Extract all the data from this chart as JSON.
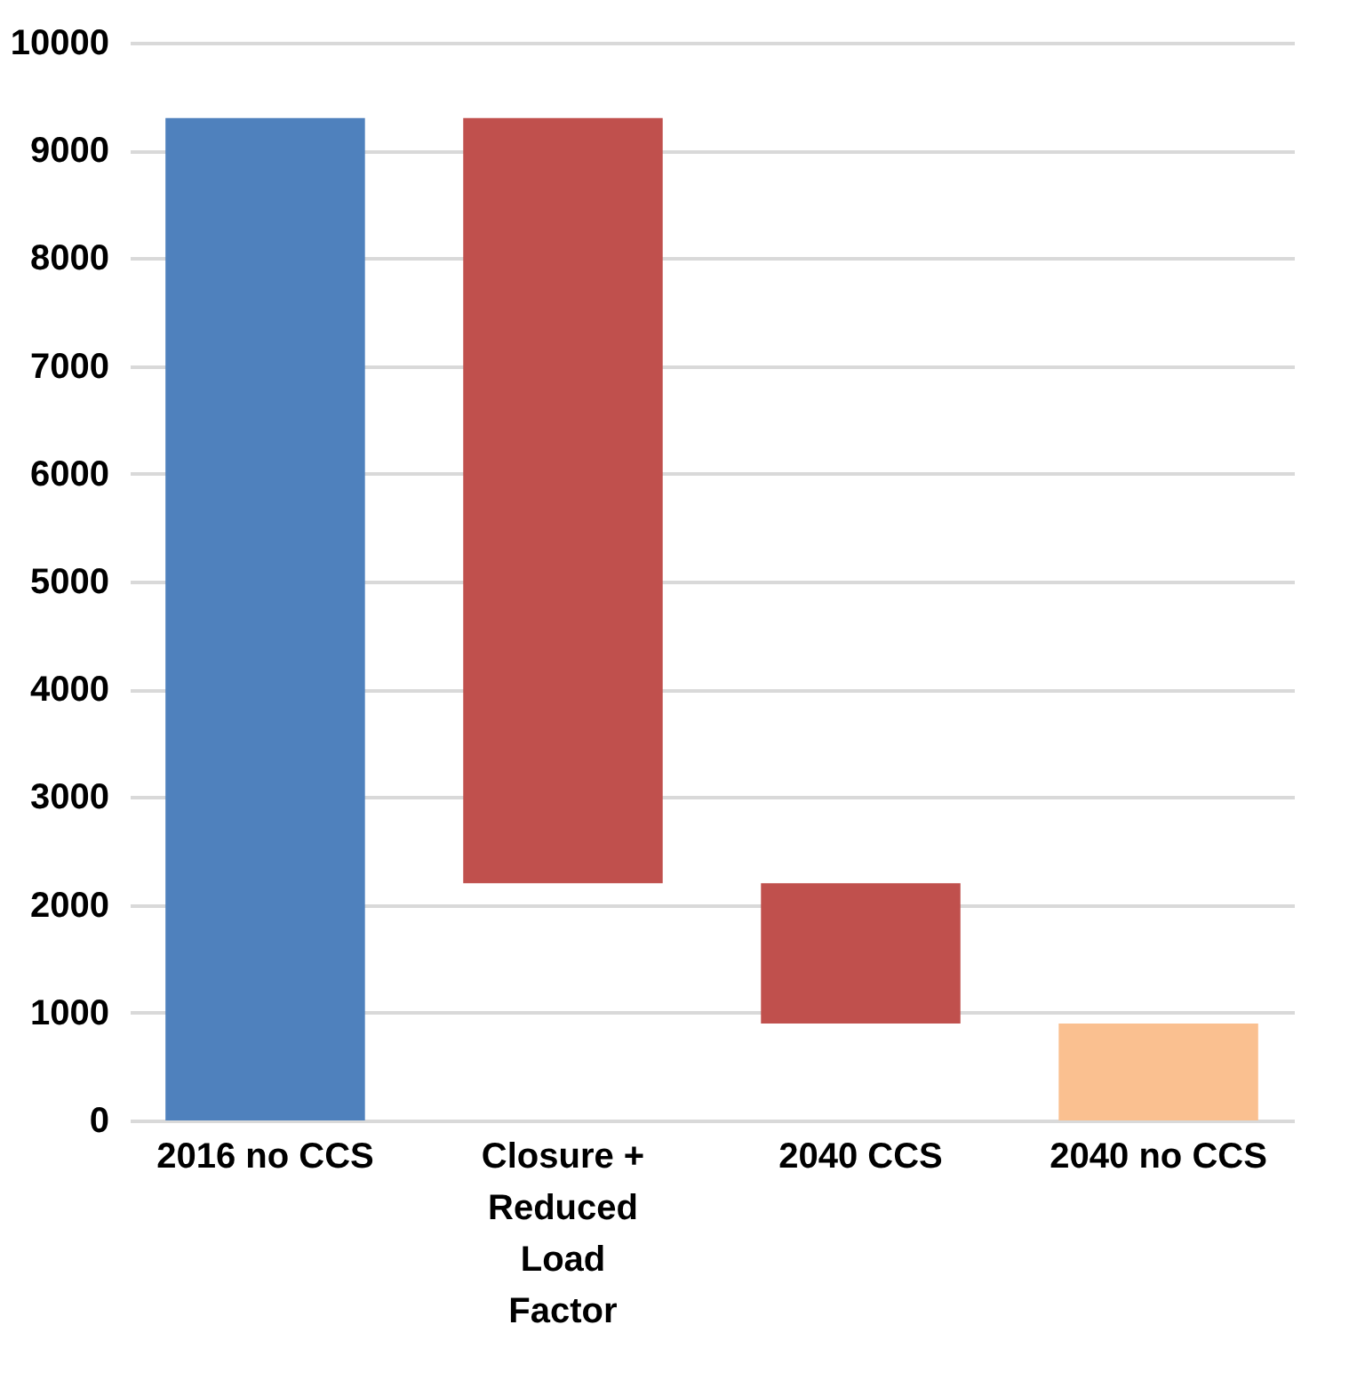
{
  "chart_data": {
    "type": "bar",
    "categories": [
      "2016 no CCS",
      "Closure + Reduced Load Factor",
      "2040 CCS",
      "2040 no CCS"
    ],
    "values": [
      9300,
      7100,
      1300,
      900
    ],
    "base": [
      0,
      2200,
      900,
      0
    ],
    "colors": [
      "#4f81bd",
      "#c0504d",
      "#c0504d",
      "#fac090"
    ],
    "ylim": [
      0,
      10000
    ],
    "yticks": [
      0,
      1000,
      2000,
      3000,
      4000,
      5000,
      6000,
      7000,
      8000,
      9000,
      10000
    ],
    "grid": "y"
  }
}
